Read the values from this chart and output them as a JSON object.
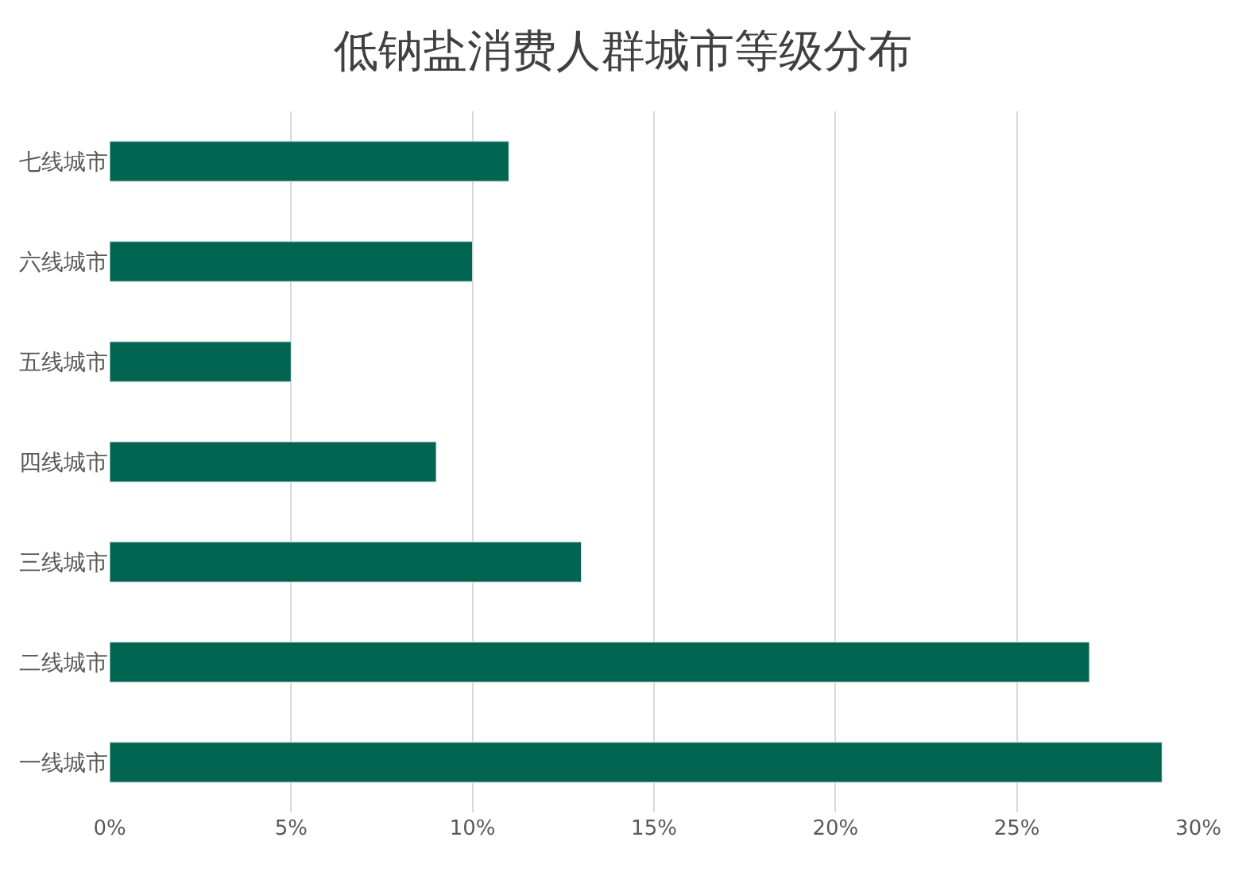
{
  "chart_data": {
    "type": "bar",
    "title": "低钠盐消费人群城市等级分布",
    "orientation": "horizontal",
    "categories": [
      "七线城市",
      "六线城市",
      "五线城市",
      "四线城市",
      "三线城市",
      "二线城市",
      "一线城市"
    ],
    "values": [
      11,
      10,
      5,
      9,
      13,
      27,
      29
    ],
    "color": "#006450",
    "xlim": [
      0,
      30
    ],
    "xticks": [
      {
        "value": 0,
        "label": "0%"
      },
      {
        "value": 5,
        "label": "5%"
      },
      {
        "value": 10,
        "label": "10%"
      },
      {
        "value": 15,
        "label": "15%"
      },
      {
        "value": 20,
        "label": "20%"
      },
      {
        "value": 25,
        "label": "25%"
      },
      {
        "value": 30,
        "label": "30%"
      }
    ],
    "grid": "x"
  }
}
